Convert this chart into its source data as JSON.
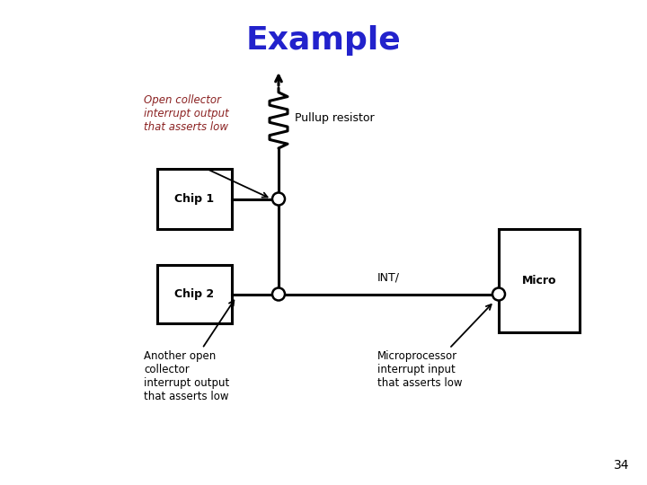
{
  "title": "Example",
  "title_color": "#2222CC",
  "title_fontsize": 26,
  "title_weight": "bold",
  "background_color": "#ffffff",
  "page_number": "34",
  "chip1_label": "Chip 1",
  "chip2_label": "Chip 2",
  "micro_label": "Micro",
  "int_label": "INT/",
  "pullup_label": "Pullup resistor",
  "open_collector_label": "Open collector\ninterrupt output\nthat asserts low",
  "open_collector_color": "#8B2222",
  "another_oc_label": "Another open\ncollector\ninterrupt output\nthat asserts low",
  "micro_interrupt_label": "Microprocessor\ninterrupt input\nthat asserts low",
  "text_color": "#000000",
  "line_color": "#000000"
}
